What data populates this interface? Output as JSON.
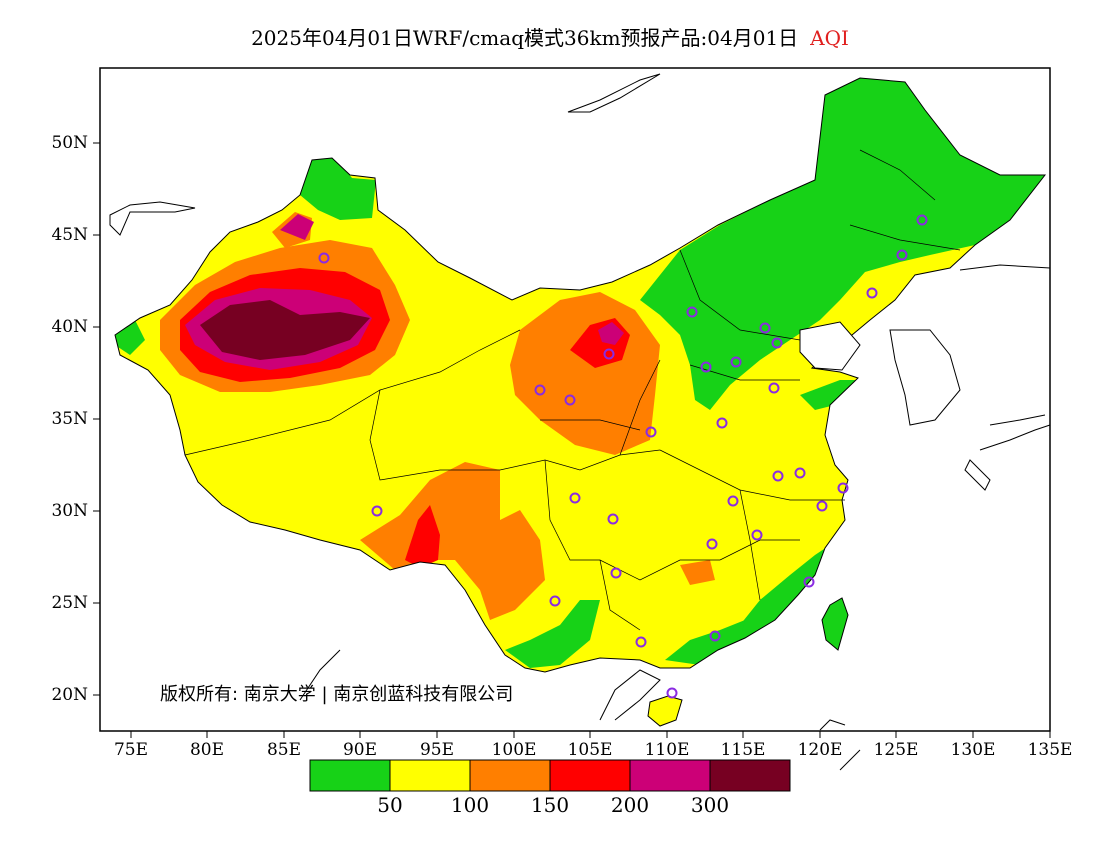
{
  "title": {
    "main": "2025年04月01日WRF/cmaq模式36km预报产品:04月01日",
    "variable": "AQI",
    "variable_color": "#e0201f"
  },
  "axes": {
    "lat_labels": [
      "50N",
      "45N",
      "40N",
      "35N",
      "30N",
      "25N",
      "20N"
    ],
    "lon_labels": [
      "75E",
      "80E",
      "85E",
      "90E",
      "95E",
      "100E",
      "105E",
      "110E",
      "115E",
      "120E",
      "125E",
      "130E",
      "135E"
    ]
  },
  "legend": {
    "colors": [
      "#17d217",
      "#ffff00",
      "#ff7f00",
      "#ff0000",
      "#cc0077",
      "#770022"
    ],
    "values": [
      "50",
      "100",
      "150",
      "200",
      "300"
    ]
  },
  "credit": "版权所有: 南京大学 | 南京创蓝科技有限公司"
}
